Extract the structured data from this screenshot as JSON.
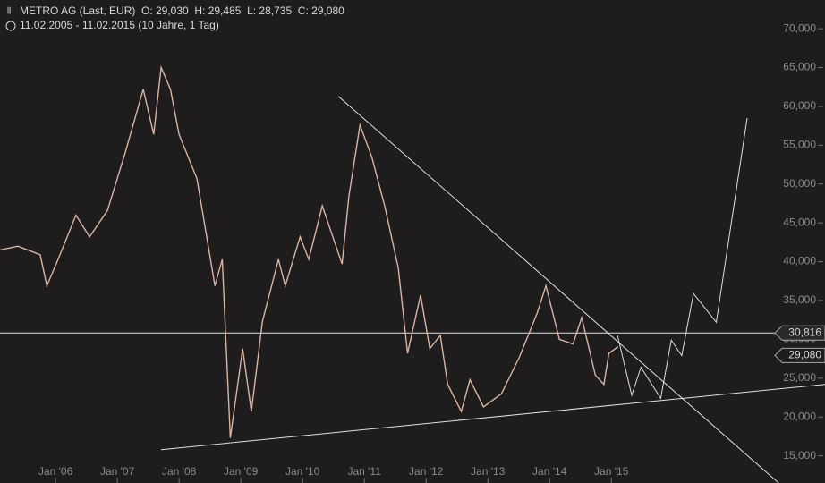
{
  "chart_data": {
    "type": "line",
    "title": "METRO AG (Last, EUR)",
    "ohlc": "O: 29,030  H: 29,485  L: 28,735  C: 29,080",
    "subtitle": "11.02.2005 - 11.02.2015 (10 Jahre, 1 Tag)",
    "xlim": [
      2005.1,
      2018.46
    ],
    "ylim": [
      11.5,
      73.7
    ],
    "xticks": [
      {
        "value": 2006,
        "label": "Jan '06"
      },
      {
        "value": 2007,
        "label": "Jan '07"
      },
      {
        "value": 2008,
        "label": "Jan '08"
      },
      {
        "value": 2009,
        "label": "Jan '09"
      },
      {
        "value": 2010,
        "label": "Jan '10"
      },
      {
        "value": 2011,
        "label": "Jan '11"
      },
      {
        "value": 2012,
        "label": "Jan '12"
      },
      {
        "value": 2013,
        "label": "Jan '13"
      },
      {
        "value": 2014,
        "label": "Jan '14"
      },
      {
        "value": 2015,
        "label": "Jan '15"
      }
    ],
    "yticks": [
      {
        "value": 15,
        "label": "15,000"
      },
      {
        "value": 20,
        "label": "20,000"
      },
      {
        "value": 25,
        "label": "25,000"
      },
      {
        "value": 30,
        "label": "30,000"
      },
      {
        "value": 35,
        "label": "35,000"
      },
      {
        "value": 40,
        "label": "40,000"
      },
      {
        "value": 45,
        "label": "45,000"
      },
      {
        "value": 50,
        "label": "50,000"
      },
      {
        "value": 55,
        "label": "55,000"
      },
      {
        "value": 60,
        "label": "60,000"
      },
      {
        "value": 65,
        "label": "65,000"
      },
      {
        "value": 70,
        "label": "70,000"
      }
    ],
    "x": [
      2005.1,
      2005.39,
      2005.75,
      2005.86,
      2006.04,
      2006.33,
      2006.55,
      2006.84,
      2007.13,
      2007.42,
      2007.59,
      2007.71,
      2007.86,
      2008.0,
      2008.29,
      2008.58,
      2008.7,
      2008.83,
      2009.03,
      2009.17,
      2009.35,
      2009.61,
      2009.72,
      2009.96,
      2010.1,
      2010.32,
      2010.64,
      2010.75,
      2010.93,
      2011.12,
      2011.33,
      2011.55,
      2011.7,
      2011.91,
      2012.06,
      2012.23,
      2012.35,
      2012.57,
      2012.71,
      2012.93,
      2013.22,
      2013.51,
      2013.8,
      2013.94,
      2014.16,
      2014.38,
      2014.52,
      2014.74,
      2014.88,
      2014.96,
      2015.11
    ],
    "series": [
      {
        "color": "#d9b4a4",
        "values": [
          41.5,
          42,
          40.9,
          36.9,
          40.3,
          46,
          43.2,
          46.6,
          54.1,
          62.2,
          56.4,
          65,
          62.2,
          56.4,
          50.7,
          36.9,
          40.3,
          17.3,
          28.8,
          20.7,
          32.3,
          40.3,
          36.9,
          43.2,
          40.3,
          47.2,
          39.7,
          48.4,
          57.6,
          53.5,
          47.2,
          39.2,
          28.2,
          35.7,
          28.8,
          30.5,
          24.2,
          20.7,
          24.8,
          21.3,
          23,
          27.7,
          33.4,
          36.9,
          30,
          29.4,
          32.8,
          25.4,
          24.2,
          28.2,
          29.08
        ]
      }
    ],
    "last_label": "29,080",
    "drawings": [
      {
        "color": "#e0e0e0",
        "x": [
          2015.1,
          2015.33,
          2015.48,
          2015.8,
          2015.97,
          2016.14,
          2016.33,
          2016.7,
          2017.2
        ],
        "values": [
          30.5,
          22.8,
          26.4,
          22.4,
          29.9,
          27.9,
          35.9,
          32.2,
          58.5
        ]
      },
      {
        "color": "#e0e0e0",
        "x": [
          2010.58,
          2017.71
        ],
        "values": [
          61.3,
          11.5
        ]
      },
      {
        "color": "#e0e0e0",
        "x": [
          2007.71,
          2018.46
        ],
        "values": [
          15.8,
          24.2
        ]
      }
    ],
    "level": {
      "value": 30.816,
      "label": "30,816"
    }
  }
}
